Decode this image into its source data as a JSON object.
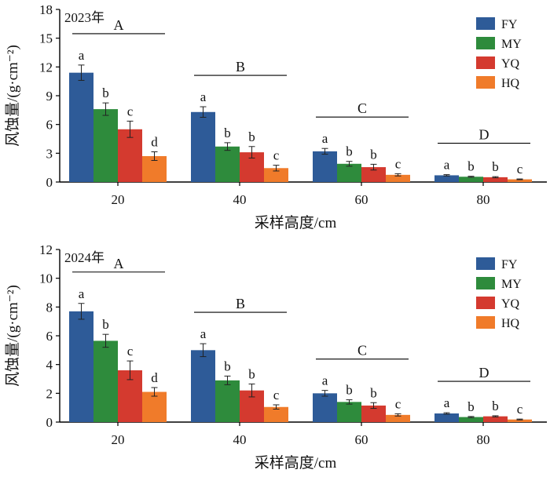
{
  "chart_data": [
    {
      "type": "bar",
      "panel_label": "2023年",
      "categories": [
        "20",
        "40",
        "60",
        "80"
      ],
      "xlabel": "采样高度/cm",
      "ylabel": "风蚀量/(g·cm⁻²)",
      "ylim": [
        0,
        18
      ],
      "yticks": [
        "0",
        "3",
        "6",
        "9",
        "12",
        "15",
        "18"
      ],
      "legend_position": "top-right",
      "series": [
        {
          "name": "FY",
          "color": "#2e5b98",
          "values": [
            11.4,
            7.3,
            3.2,
            0.7
          ],
          "errors": [
            0.8,
            0.55,
            0.3,
            0.07
          ],
          "letters": [
            "a",
            "a",
            "a",
            "a"
          ]
        },
        {
          "name": "MY",
          "color": "#2e8b3c",
          "values": [
            7.6,
            3.7,
            1.9,
            0.55
          ],
          "errors": [
            0.65,
            0.4,
            0.25,
            0.05
          ],
          "letters": [
            "b",
            "b",
            "b",
            "b"
          ]
        },
        {
          "name": "YQ",
          "color": "#d43a2f",
          "values": [
            5.5,
            3.1,
            1.55,
            0.5
          ],
          "errors": [
            0.85,
            0.6,
            0.3,
            0.06
          ],
          "letters": [
            "c",
            "b",
            "b",
            "b"
          ]
        },
        {
          "name": "HQ",
          "color": "#f07b2a",
          "values": [
            2.7,
            1.45,
            0.75,
            0.28
          ],
          "errors": [
            0.45,
            0.3,
            0.12,
            0.04
          ],
          "letters": [
            "d",
            "c",
            "c",
            "c"
          ]
        }
      ],
      "group_letters": [
        "A",
        "B",
        "C",
        "D"
      ]
    },
    {
      "type": "bar",
      "panel_label": "2024年",
      "categories": [
        "20",
        "40",
        "60",
        "80"
      ],
      "xlabel": "采样高度/cm",
      "ylabel": "风蚀量/(g·cm⁻²)",
      "ylim": [
        0,
        12
      ],
      "yticks": [
        "0",
        "2",
        "4",
        "6",
        "8",
        "10",
        "12"
      ],
      "legend_position": "top-right",
      "series": [
        {
          "name": "FY",
          "color": "#2e5b98",
          "values": [
            7.7,
            5.0,
            2.0,
            0.6
          ],
          "errors": [
            0.55,
            0.45,
            0.2,
            0.05
          ],
          "letters": [
            "a",
            "a",
            "a",
            "a"
          ]
        },
        {
          "name": "MY",
          "color": "#2e8b3c",
          "values": [
            5.65,
            2.9,
            1.4,
            0.35
          ],
          "errors": [
            0.45,
            0.3,
            0.15,
            0.04
          ],
          "letters": [
            "b",
            "b",
            "b",
            "b"
          ]
        },
        {
          "name": "YQ",
          "color": "#d43a2f",
          "values": [
            3.6,
            2.2,
            1.15,
            0.4
          ],
          "errors": [
            0.65,
            0.45,
            0.2,
            0.04
          ],
          "letters": [
            "c",
            "b",
            "b",
            "b"
          ]
        },
        {
          "name": "HQ",
          "color": "#f07b2a",
          "values": [
            2.1,
            1.05,
            0.5,
            0.18
          ],
          "errors": [
            0.3,
            0.15,
            0.08,
            0.03
          ],
          "letters": [
            "d",
            "c",
            "c",
            "c"
          ]
        }
      ],
      "group_letters": [
        "A",
        "B",
        "C",
        "D"
      ]
    }
  ]
}
